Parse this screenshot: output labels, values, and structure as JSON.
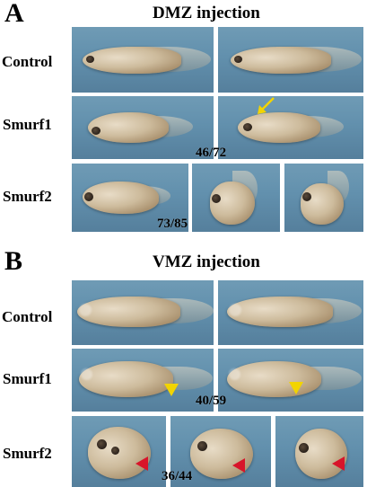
{
  "panels": {
    "a": {
      "letter": "A",
      "title": "DMZ injection",
      "rows": {
        "control": {
          "label": "Control"
        },
        "smurf1": {
          "label": "Smurf1",
          "ratio": "46/72"
        },
        "smurf2": {
          "label": "Smurf2",
          "ratio": "73/85"
        }
      }
    },
    "b": {
      "letter": "B",
      "title": "VMZ injection",
      "rows": {
        "control": {
          "label": "Control"
        },
        "smurf1": {
          "label": "Smurf1",
          "ratio": "40/59"
        },
        "smurf2": {
          "label": "Smurf2",
          "ratio": "36/44"
        }
      }
    }
  },
  "colors": {
    "background": "#6a95b2",
    "yellow_marker": "#f2d400",
    "red_marker": "#d8142a"
  },
  "icons": {
    "yellow_arrow": "arrow-icon",
    "yellow_arrowhead": "arrowhead-icon",
    "red_arrowhead": "arrowhead-icon"
  }
}
